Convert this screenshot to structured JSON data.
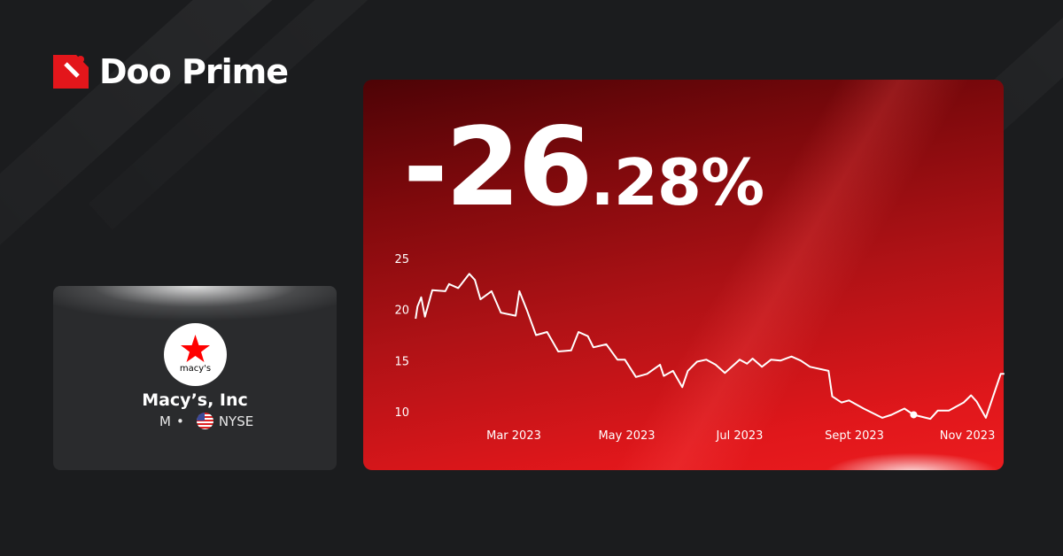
{
  "brand": {
    "name": "Doo Prime",
    "color": "#e3161b"
  },
  "stock": {
    "company": "Macy’s, Inc",
    "ticker": "M",
    "separator": "•",
    "exchange": "NYSE",
    "logo_text": "macy's",
    "logo_icon": "red-star-icon",
    "flag_icon": "us-flag-icon"
  },
  "change": {
    "integer": "-26",
    "decimal": ".28%"
  },
  "chart_data": {
    "type": "line",
    "title": "",
    "xlabel": "",
    "ylabel": "",
    "x_tick_labels": [
      "Mar 2023",
      "May 2023",
      "Jul 2023",
      "Sept 2023",
      "Nov 2023"
    ],
    "x_ticks": [
      "2023-03-01",
      "2023-05-01",
      "2023-07-01",
      "2023-09-01",
      "2023-11-01"
    ],
    "y_tick_labels": [
      "25",
      "20",
      "15",
      "10"
    ],
    "y_ticks": [
      25,
      20,
      15,
      10
    ],
    "ylim": [
      10,
      25
    ],
    "grid": false,
    "line_color": "#ffffff",
    "marker": {
      "date": "2023-10-03",
      "value": 9.7
    },
    "series": [
      {
        "points": [
          [
            "2023-01-07",
            19.1
          ],
          [
            "2023-01-08",
            20.3
          ],
          [
            "2023-01-10",
            21.2
          ],
          [
            "2023-01-12",
            19.3
          ],
          [
            "2023-01-16",
            21.9
          ],
          [
            "2023-01-23",
            21.8
          ],
          [
            "2023-01-25",
            22.5
          ],
          [
            "2023-01-30",
            22.1
          ],
          [
            "2023-02-05",
            23.5
          ],
          [
            "2023-02-08",
            22.9
          ],
          [
            "2023-02-11",
            21.0
          ],
          [
            "2023-02-17",
            21.8
          ],
          [
            "2023-02-22",
            19.7
          ],
          [
            "2023-03-02",
            19.4
          ],
          [
            "2023-03-04",
            21.8
          ],
          [
            "2023-03-08",
            20.0
          ],
          [
            "2023-03-13",
            17.5
          ],
          [
            "2023-03-19",
            17.8
          ],
          [
            "2023-03-25",
            15.9
          ],
          [
            "2023-04-01",
            16.0
          ],
          [
            "2023-04-05",
            17.8
          ],
          [
            "2023-04-10",
            17.4
          ],
          [
            "2023-04-13",
            16.3
          ],
          [
            "2023-04-20",
            16.6
          ],
          [
            "2023-04-26",
            15.1
          ],
          [
            "2023-04-30",
            15.1
          ],
          [
            "2023-05-06",
            13.4
          ],
          [
            "2023-05-12",
            13.7
          ],
          [
            "2023-05-19",
            14.6
          ],
          [
            "2023-05-21",
            13.5
          ],
          [
            "2023-05-26",
            14.0
          ],
          [
            "2023-05-31",
            12.4
          ],
          [
            "2023-06-03",
            14.0
          ],
          [
            "2023-06-08",
            14.9
          ],
          [
            "2023-06-13",
            15.1
          ],
          [
            "2023-06-18",
            14.6
          ],
          [
            "2023-06-23",
            13.8
          ],
          [
            "2023-07-01",
            15.1
          ],
          [
            "2023-07-05",
            14.7
          ],
          [
            "2023-07-08",
            15.2
          ],
          [
            "2023-07-13",
            14.4
          ],
          [
            "2023-07-18",
            15.1
          ],
          [
            "2023-07-23",
            15.0
          ],
          [
            "2023-07-29",
            15.4
          ],
          [
            "2023-08-03",
            15.0
          ],
          [
            "2023-08-08",
            14.4
          ],
          [
            "2023-08-18",
            14.0
          ],
          [
            "2023-08-20",
            11.5
          ],
          [
            "2023-08-25",
            10.9
          ],
          [
            "2023-08-29",
            11.1
          ],
          [
            "2023-09-06",
            10.3
          ],
          [
            "2023-09-16",
            9.4
          ],
          [
            "2023-09-21",
            9.7
          ],
          [
            "2023-09-28",
            10.3
          ],
          [
            "2023-10-03",
            9.7
          ],
          [
            "2023-10-12",
            9.3
          ],
          [
            "2023-10-16",
            10.1
          ],
          [
            "2023-10-22",
            10.1
          ],
          [
            "2023-10-30",
            10.9
          ],
          [
            "2023-11-03",
            11.6
          ],
          [
            "2023-11-06",
            11.0
          ],
          [
            "2023-11-11",
            9.4
          ],
          [
            "2023-11-19",
            13.7
          ],
          [
            "2023-11-21",
            13.7
          ]
        ]
      }
    ]
  }
}
